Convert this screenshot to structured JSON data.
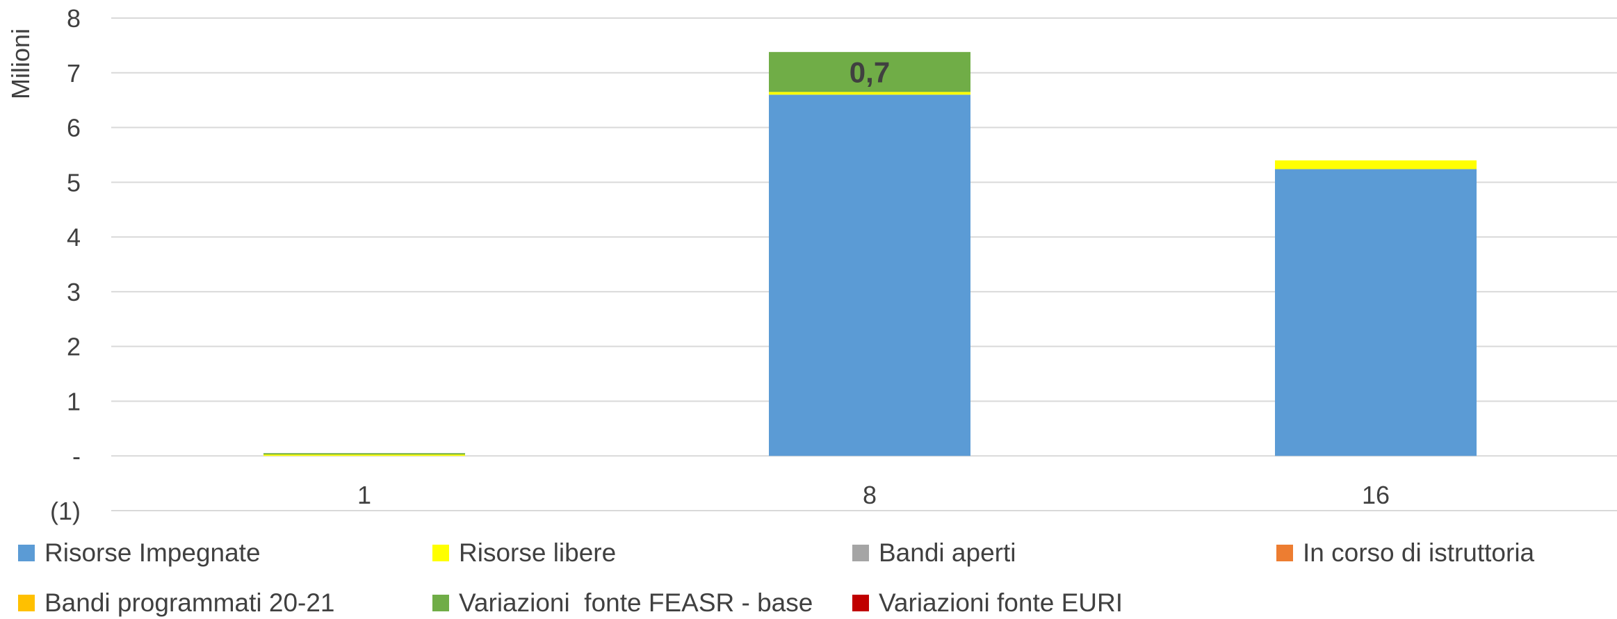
{
  "chart_data": {
    "type": "bar",
    "stacked": true,
    "categories": [
      "1",
      "8",
      "16"
    ],
    "ylabel": "Milioni",
    "ylim": [
      -1,
      8
    ],
    "yticks": [
      {
        "value": 8,
        "label": "8"
      },
      {
        "value": 7,
        "label": "7"
      },
      {
        "value": 6,
        "label": "6"
      },
      {
        "value": 5,
        "label": "5"
      },
      {
        "value": 4,
        "label": "4"
      },
      {
        "value": 3,
        "label": "3"
      },
      {
        "value": 2,
        "label": "2"
      },
      {
        "value": 1,
        "label": "1"
      },
      {
        "value": 0,
        "label": "-"
      },
      {
        "value": -1,
        "label": "(1)"
      }
    ],
    "grid": true,
    "legend_position": "bottom",
    "series": [
      {
        "name": "Risorse Impegnate",
        "color": "#5B9BD5",
        "values": [
          0,
          6.6,
          5.24
        ]
      },
      {
        "name": "Risorse libere",
        "color": "#FFFF00",
        "values": [
          0.03,
          0.05,
          0.16
        ]
      },
      {
        "name": "Bandi aperti",
        "color": "#A5A5A5",
        "values": [
          0,
          0,
          0
        ]
      },
      {
        "name": "In corso di istruttoria",
        "color": "#ED7D31",
        "values": [
          0,
          0,
          0
        ]
      },
      {
        "name": "Bandi programmati 20-21",
        "color": "#FFC000",
        "values": [
          0,
          0,
          0
        ]
      },
      {
        "name": "Variazioni  fonte FEASR - base",
        "color": "#70AD47",
        "values": [
          0.02,
          0.73,
          0
        ]
      },
      {
        "name": "Variazioni fonte EURI",
        "color": "#C00000",
        "values": [
          0,
          0,
          0
        ]
      }
    ],
    "annotations": [
      {
        "category": "8",
        "series": "Variazioni  fonte FEASR - base",
        "text": "0,7"
      }
    ]
  }
}
